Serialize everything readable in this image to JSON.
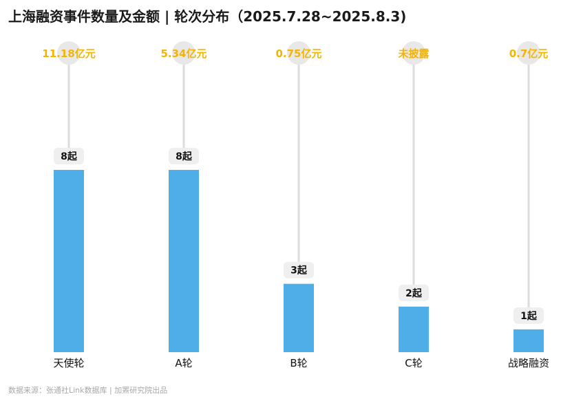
{
  "title": "上海融资事件数量及金额 | 轮次分布（2025.7.28~2025.8.3)",
  "footer": "数据来源：张通社Link数据库 | 加罴研究院出品",
  "colors": {
    "bar": "#4FAEE8",
    "amount": "#F5B400",
    "count_badge": "#EFEFEF",
    "stem": "#DCDCDC"
  },
  "chart_data": {
    "type": "bar",
    "categories": [
      "天使轮",
      "A轮",
      "B轮",
      "C轮",
      "战略融资"
    ],
    "series": [
      {
        "values": [
          8,
          8,
          3,
          2,
          1
        ]
      }
    ],
    "count_labels": [
      "8起",
      "8起",
      "3起",
      "2起",
      "1起"
    ],
    "amount_labels": [
      "11.18亿元",
      "5.34亿元",
      "0.75亿元",
      "未披露",
      "0.7亿元"
    ],
    "ylim": [
      0,
      8
    ]
  }
}
